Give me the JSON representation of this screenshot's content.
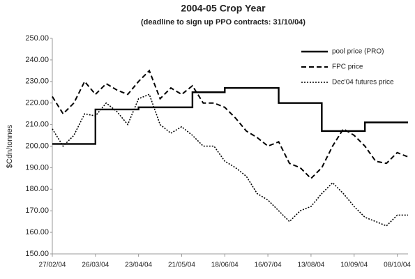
{
  "chart_data": {
    "type": "line",
    "title": "2004-05 Crop Year",
    "subtitle": "(deadline to sign up PPO contracts: 31/10/04)",
    "y_label": "$Cdn/tonnes",
    "x": [
      "27/02/04",
      "05/03/04",
      "12/03/04",
      "19/03/04",
      "26/03/04",
      "02/04/04",
      "09/04/04",
      "16/04/04",
      "23/04/04",
      "30/04/04",
      "07/05/04",
      "14/05/04",
      "21/05/04",
      "28/05/04",
      "04/06/04",
      "11/06/04",
      "18/06/04",
      "25/06/04",
      "02/07/04",
      "09/07/04",
      "16/07/04",
      "23/07/04",
      "30/07/04",
      "06/08/04",
      "13/08/04",
      "20/08/04",
      "27/08/04",
      "03/09/04",
      "10/09/04",
      "17/09/04",
      "24/09/04",
      "01/10/04",
      "08/10/04",
      "15/10/04"
    ],
    "series": [
      {
        "name": "pool price (PRO)",
        "color": "#000000",
        "style": "solid",
        "step": true,
        "values": [
          201,
          201,
          201,
          201,
          217,
          217,
          217,
          217,
          218,
          218,
          218,
          218,
          218,
          225,
          225,
          225,
          227,
          227,
          227,
          227,
          227,
          220,
          220,
          220,
          220,
          207,
          207,
          207,
          207,
          211,
          211,
          211,
          211,
          211
        ]
      },
      {
        "name": "FPC price",
        "color": "#000000",
        "style": "dashed",
        "values": [
          223,
          215,
          220,
          230,
          224,
          229,
          226,
          224,
          230,
          235,
          222,
          227,
          224,
          228,
          220,
          220,
          218,
          213,
          207,
          204,
          200,
          202,
          192,
          190,
          185,
          190,
          200,
          208,
          205,
          200,
          193,
          192,
          197,
          195
        ]
      },
      {
        "name": "Dec'04 futures price",
        "color": "#000000",
        "style": "dotted",
        "values": [
          208,
          200,
          205,
          215,
          214,
          220,
          216,
          210,
          222,
          224,
          210,
          206,
          209,
          205,
          200,
          200,
          193,
          190,
          186,
          178,
          175,
          170,
          165,
          170,
          172,
          178,
          183,
          178,
          172,
          167,
          165,
          163,
          168,
          168
        ]
      }
    ],
    "xlim": [
      "27/02/04",
      "15/10/04"
    ],
    "xticks": [
      "27/02/04",
      "26/03/04",
      "23/04/04",
      "21/05/04",
      "18/06/04",
      "16/07/04",
      "13/08/04",
      "10/09/04",
      "08/10/04"
    ],
    "ylim": [
      150,
      250
    ],
    "yticks": [
      {
        "value": 150,
        "label": "150.00"
      },
      {
        "value": 160,
        "label": "160.00"
      },
      {
        "value": 170,
        "label": "170.00"
      },
      {
        "value": 180,
        "label": "180.00"
      },
      {
        "value": 190,
        "label": "190.00"
      },
      {
        "value": 200,
        "label": "200.00"
      },
      {
        "value": 210,
        "label": "210.00"
      },
      {
        "value": 220,
        "label": "220.00"
      },
      {
        "value": 230,
        "label": "230.00"
      },
      {
        "value": 240,
        "label": "240.00"
      },
      {
        "value": 250,
        "label": "250.00"
      }
    ],
    "grid": false,
    "legend": "top-right"
  }
}
